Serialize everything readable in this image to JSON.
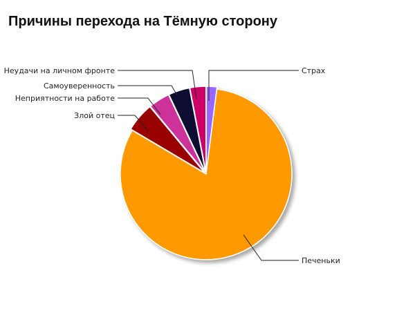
{
  "chart_data": {
    "type": "pie",
    "title": "Причины перехода на Тёмную сторону",
    "start": "top",
    "direction": "clockwise",
    "slices": [
      {
        "label": "Страх",
        "value": 2,
        "color": "#9966ff"
      },
      {
        "label": "Печеньки",
        "value": 81.5,
        "color": "#ff9900"
      },
      {
        "label": "Злой отец",
        "value": 5.5,
        "color": "#990000"
      },
      {
        "label": "Неприятности на работе",
        "value": 4,
        "color": "#cc3399"
      },
      {
        "label": "Самоуверенность",
        "value": 4,
        "color": "#0a0a33"
      },
      {
        "label": "Неудачи на личном фронте",
        "value": 3,
        "color": "#cc0066"
      }
    ]
  }
}
